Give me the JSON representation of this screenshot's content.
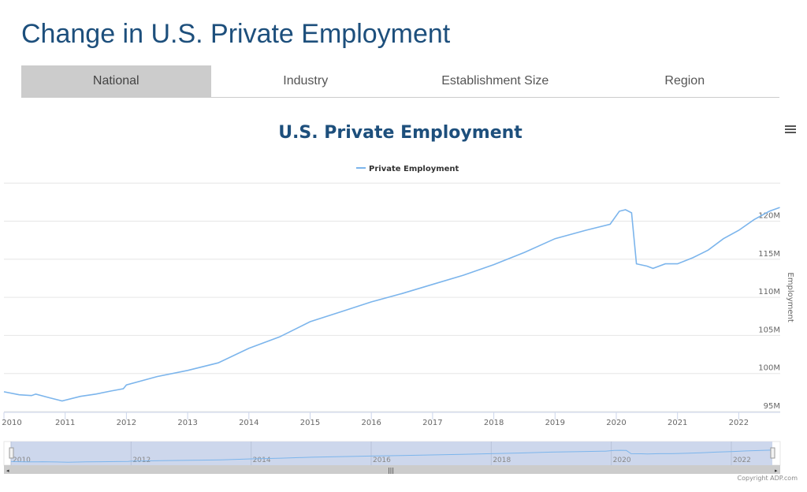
{
  "page": {
    "title": "Change in U.S. Private Employment"
  },
  "tabs": [
    {
      "label": "National",
      "active": true
    },
    {
      "label": "Industry"
    },
    {
      "label": "Establishment Size"
    },
    {
      "label": "Region"
    }
  ],
  "menu_icon": "hamburger-menu-icon",
  "copyright": "Copyright ADP.com",
  "colors": {
    "line": "#7cb5ec",
    "title": "#1d4f7c",
    "navigator_mask": "#cdd7ec"
  },
  "chart_data": {
    "type": "line",
    "title": "U.S. Private Employment",
    "ylabel": "Employment",
    "xlabel": "",
    "legend": {
      "position": "top",
      "entries": [
        "Private Employment"
      ]
    },
    "ylim": [
      95,
      125
    ],
    "yticks": [
      "95M",
      "100M",
      "105M",
      "110M",
      "115M",
      "120M"
    ],
    "ytick_values": [
      95,
      100,
      105,
      110,
      115,
      120
    ],
    "xticks": [
      "2010",
      "2011",
      "2012",
      "2013",
      "2014",
      "2015",
      "2016",
      "2017",
      "2018",
      "2019",
      "2020",
      "2021",
      "2022"
    ],
    "navigator_ticks": [
      "2010",
      "2012",
      "2014",
      "2016",
      "2018",
      "2020",
      "2022"
    ],
    "grid": true,
    "series": [
      {
        "name": "Private Employment",
        "x": [
          2010.0,
          2010.25,
          2010.45,
          2010.52,
          2010.75,
          2010.95,
          2011.25,
          2011.5,
          2011.75,
          2011.95,
          2012.0,
          2012.5,
          2013.0,
          2013.5,
          2014.0,
          2014.5,
          2015.0,
          2015.5,
          2016.0,
          2016.5,
          2017.0,
          2017.5,
          2018.0,
          2018.5,
          2019.0,
          2019.5,
          2019.9,
          2020.05,
          2020.15,
          2020.25,
          2020.33,
          2020.5,
          2020.6,
          2020.8,
          2021.0,
          2021.25,
          2021.5,
          2021.75,
          2022.0,
          2022.25,
          2022.5,
          2022.67
        ],
        "values": [
          97.6,
          97.2,
          97.1,
          97.3,
          96.8,
          96.4,
          97.0,
          97.3,
          97.7,
          98.0,
          98.5,
          99.6,
          100.4,
          101.4,
          103.3,
          104.8,
          106.8,
          108.1,
          109.4,
          110.5,
          111.7,
          112.9,
          114.3,
          115.9,
          117.7,
          118.8,
          119.6,
          121.3,
          121.5,
          121.1,
          114.4,
          114.1,
          113.8,
          114.4,
          114.4,
          115.2,
          116.2,
          117.7,
          118.8,
          120.2,
          121.3,
          121.8
        ]
      }
    ]
  }
}
